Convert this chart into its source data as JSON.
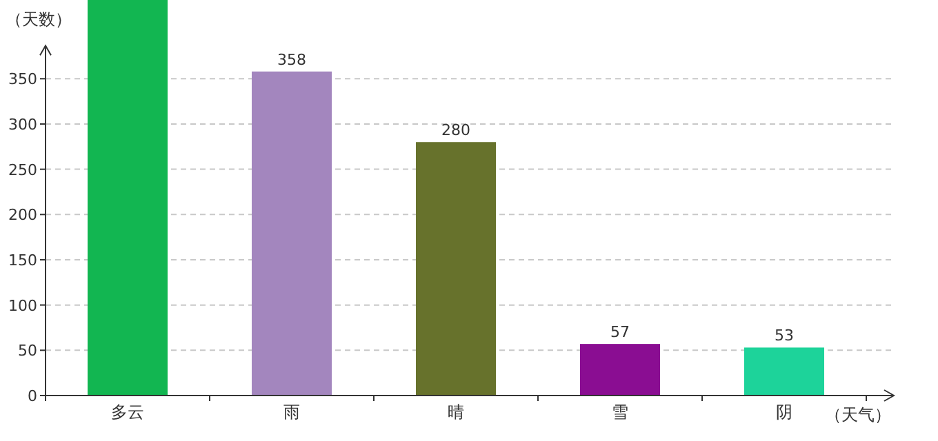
{
  "chart_data": {
    "type": "bar",
    "xlabel": "（天气）",
    "ylabel": "（天数）",
    "categories": [
      "多云",
      "雨",
      "晴",
      "雪",
      "阴"
    ],
    "values": [
      437,
      358,
      280,
      57,
      53
    ],
    "colors": [
      "#12b651",
      "#a386be",
      "#67722c",
      "#8a0d92",
      "#1dd39a"
    ],
    "value_labels": [
      null,
      "358",
      "280",
      "57",
      "53"
    ],
    "ylim": [
      0,
      437
    ],
    "yticks": [
      0,
      50,
      100,
      150,
      200,
      250,
      300,
      350
    ],
    "grid": "y"
  }
}
